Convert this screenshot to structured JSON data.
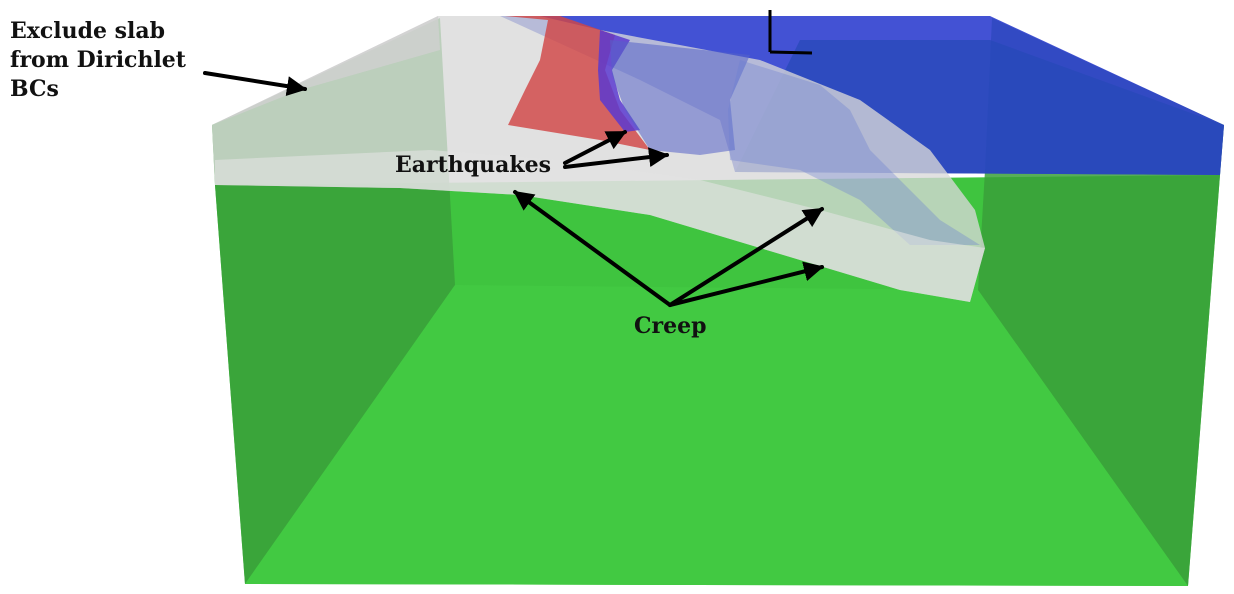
{
  "labels": {
    "exclude_line1": "Exclude slab",
    "exclude_line2": "from Dirichlet",
    "exclude_line3": "BCs",
    "earthquakes": "Earthquakes",
    "creep": "Creep"
  },
  "colors": {
    "green_box": "#3fc43f",
    "green_dark": "#3aa33a",
    "blue_layer": "#2a3bc8",
    "slab": "#d6d6d6",
    "red_patch": "#d04848",
    "arrow": "#000000"
  },
  "icons": {
    "axis_marker": "axis-corner-icon"
  }
}
